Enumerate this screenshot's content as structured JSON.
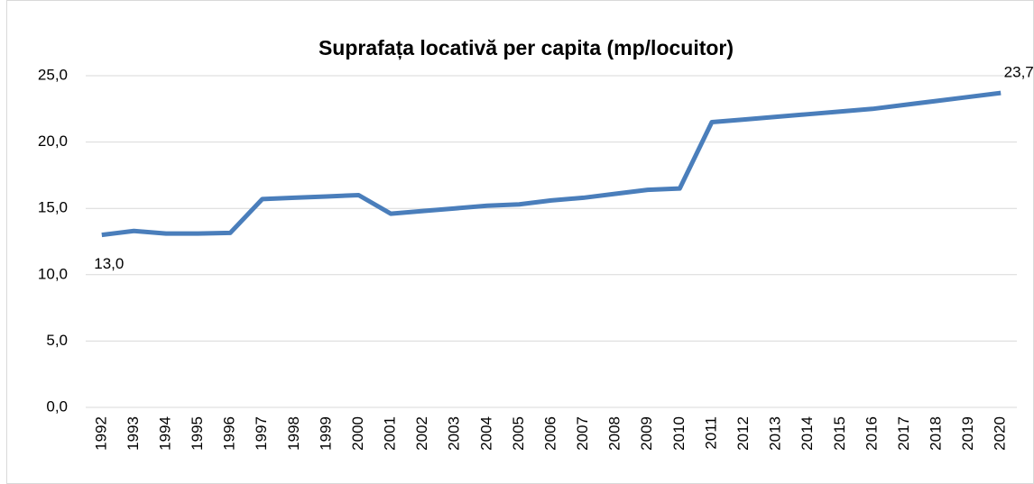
{
  "chart_data": {
    "type": "line",
    "title": "Suprafața locativă per capita (mp/locuitor)",
    "categories": [
      "1992",
      "1993",
      "1994",
      "1995",
      "1996",
      "1997",
      "1998",
      "1999",
      "2000",
      "2001",
      "2002",
      "2003",
      "2004",
      "2005",
      "2006",
      "2007",
      "2008",
      "2009",
      "2010",
      "2011",
      "2012",
      "2013",
      "2014",
      "2015",
      "2016",
      "2017",
      "2018",
      "2019",
      "2020"
    ],
    "values": [
      13.0,
      13.3,
      13.1,
      13.1,
      13.15,
      15.7,
      15.8,
      15.9,
      16.0,
      14.6,
      14.8,
      15.0,
      15.2,
      15.3,
      15.6,
      15.8,
      16.1,
      16.4,
      16.5,
      21.5,
      21.7,
      21.9,
      22.1,
      22.3,
      22.5,
      22.8,
      23.1,
      23.4,
      23.7
    ],
    "value_labels": [
      "13,0",
      null,
      null,
      null,
      null,
      null,
      null,
      null,
      null,
      null,
      null,
      null,
      null,
      null,
      null,
      null,
      null,
      null,
      null,
      null,
      null,
      null,
      null,
      null,
      null,
      null,
      null,
      null,
      "23,7"
    ],
    "color": "#4a7ebb",
    "ylim": [
      0,
      25
    ],
    "yticks": [
      {
        "value": 0,
        "label": "0,0"
      },
      {
        "value": 5,
        "label": "5,0"
      },
      {
        "value": 10,
        "label": "10,0"
      },
      {
        "value": 15,
        "label": "15,0"
      },
      {
        "value": 20,
        "label": "20,0"
      },
      {
        "value": 25,
        "label": "25,0"
      }
    ],
    "grid": true
  }
}
